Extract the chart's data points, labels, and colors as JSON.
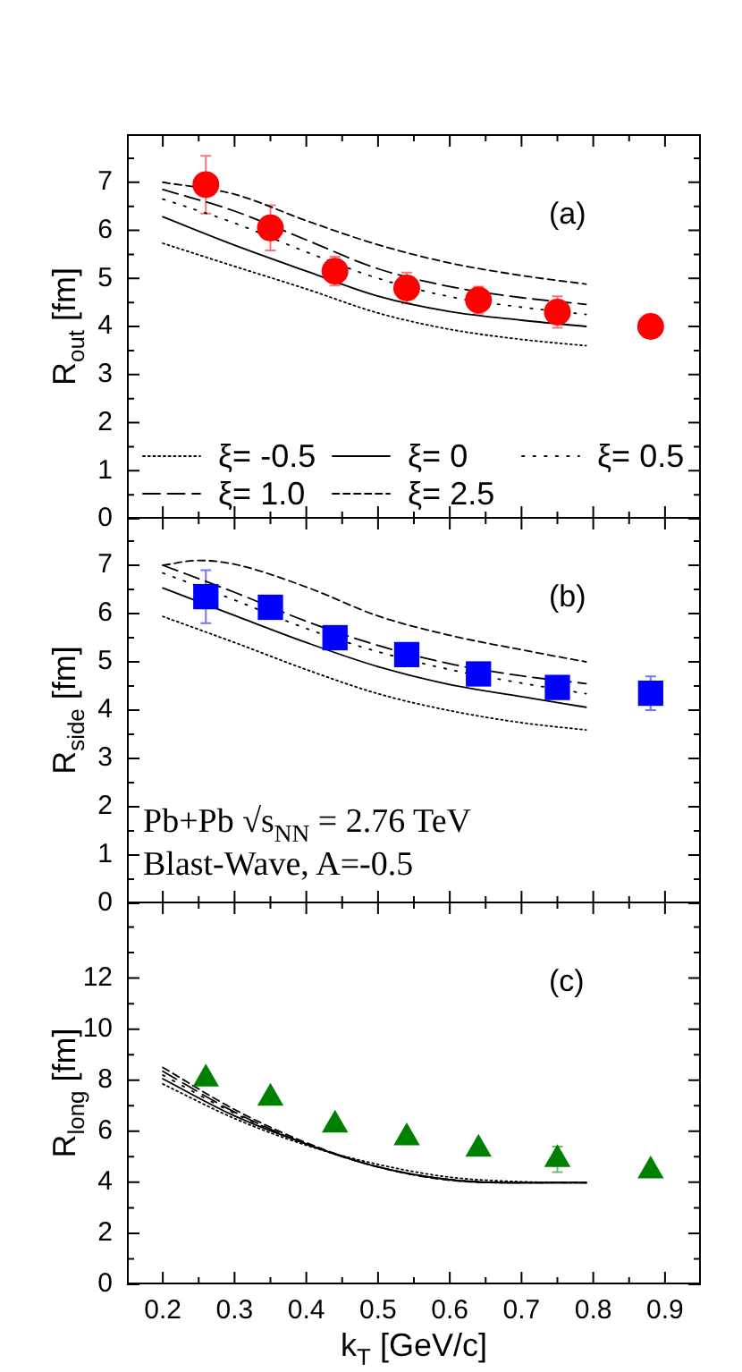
{
  "chart_data": [
    {
      "type": "scatter",
      "ylabel": "R$_{out}$ [fm]",
      "x": [
        0.26,
        0.35,
        0.44,
        0.54,
        0.64,
        0.75,
        0.88
      ],
      "xlim": [
        0.15,
        0.95
      ],
      "xticks": [
        0.2,
        {
          "value": 0.25,
          "label": null
        },
        0.3,
        {
          "value": 0.35,
          "label": null
        },
        0.4,
        {
          "value": 0.45,
          "label": null
        },
        0.5,
        {
          "value": 0.55,
          "label": null
        },
        0.6,
        {
          "value": 0.65,
          "label": null
        },
        0.7,
        {
          "value": 0.75,
          "label": null
        },
        0.8,
        {
          "value": 0.85,
          "label": null
        },
        0.9
      ],
      "ylim": [
        0,
        8
      ],
      "yticks": [
        0,
        {
          "value": 0.5,
          "label": null
        },
        1,
        {
          "value": 1.5,
          "label": null
        },
        2,
        {
          "value": 2.5,
          "label": null
        },
        3,
        {
          "value": 3.5,
          "label": null
        },
        4,
        {
          "value": 4.5,
          "label": null
        },
        5,
        {
          "value": 5.5,
          "label": null
        },
        6,
        {
          "value": 6.5,
          "label": null
        },
        7,
        {
          "value": 7.5,
          "label": null
        }
      ],
      "tick_labels": "y",
      "legend": "bottom",
      "annotations": [
        "(a)"
      ],
      "series": [
        {
          "color": "#ff0000",
          "marker": "circle",
          "values": [
            6.95,
            6.05,
            5.15,
            4.8,
            4.55,
            4.3,
            4.0
          ],
          "errors": [
            0.6,
            0.47,
            0.3,
            0.32,
            0.28,
            0.33,
            null
          ]
        },
        {
          "name": "ξ= -0.5",
          "type": "line",
          "color": "#000000",
          "line_style": "dotted",
          "marker": "none",
          "x": [
            0.2,
            0.3,
            0.4,
            0.5,
            0.6,
            0.7,
            0.79
          ],
          "values": [
            5.73,
            5.25,
            4.78,
            4.28,
            3.94,
            3.73,
            3.6
          ]
        },
        {
          "name": "ξ= 0",
          "type": "line",
          "color": "#000000",
          "line_style": "solid",
          "marker": "none",
          "x": [
            0.2,
            0.3,
            0.4,
            0.5,
            0.6,
            0.7,
            0.79
          ],
          "values": [
            6.28,
            5.69,
            5.15,
            4.63,
            4.31,
            4.13,
            4.0
          ]
        },
        {
          "name": "ξ= 0.5",
          "type": "line",
          "color": "#000000",
          "line_style": "dotted",
          "marker": "none",
          "x": [
            0.2,
            0.3,
            0.4,
            0.5,
            0.6,
            0.7,
            0.79
          ],
          "values": [
            6.65,
            6.15,
            5.55,
            5.0,
            4.62,
            4.4,
            4.25
          ]
        },
        {
          "name": "ξ= 1.0",
          "type": "line",
          "color": "#000000",
          "line_style": "dashed",
          "marker": "none",
          "x": [
            0.2,
            0.3,
            0.4,
            0.5,
            0.6,
            0.7,
            0.79
          ],
          "values": [
            6.85,
            6.4,
            5.8,
            5.2,
            4.83,
            4.6,
            4.46
          ]
        },
        {
          "name": "ξ= 2.5",
          "type": "line",
          "color": "#000000",
          "line_style": "dashed",
          "marker": "none",
          "x": [
            0.2,
            0.3,
            0.4,
            0.5,
            0.6,
            0.7,
            0.79
          ],
          "values": [
            7.0,
            6.75,
            6.2,
            5.7,
            5.32,
            5.06,
            4.88
          ]
        }
      ]
    },
    {
      "type": "scatter",
      "ylabel": "R$_{side}$ [fm]",
      "x": [
        0.26,
        0.35,
        0.44,
        0.54,
        0.64,
        0.75,
        0.88
      ],
      "xlim": [
        0.15,
        0.95
      ],
      "xticks": [
        0.2,
        {
          "value": 0.25,
          "label": null
        },
        0.3,
        {
          "value": 0.35,
          "label": null
        },
        0.4,
        {
          "value": 0.45,
          "label": null
        },
        0.5,
        {
          "value": 0.55,
          "label": null
        },
        0.6,
        {
          "value": 0.65,
          "label": null
        },
        0.7,
        {
          "value": 0.75,
          "label": null
        },
        0.8,
        {
          "value": 0.85,
          "label": null
        },
        0.9
      ],
      "ylim": [
        0,
        8
      ],
      "yticks": [
        0,
        {
          "value": 0.5,
          "label": null
        },
        1,
        {
          "value": 1.5,
          "label": null
        },
        2,
        {
          "value": 2.5,
          "label": null
        },
        3,
        {
          "value": 3.5,
          "label": null
        },
        4,
        {
          "value": 4.5,
          "label": null
        },
        5,
        {
          "value": 5.5,
          "label": null
        },
        6,
        {
          "value": 6.5,
          "label": null
        },
        7,
        {
          "value": 7.5,
          "label": null
        }
      ],
      "tick_labels": "y",
      "annotations": [
        "(b)",
        "Pb+Pb √s$_{NN}$ = 2.76 TeV",
        "Blast-Wave, A=-0.5"
      ],
      "series": [
        {
          "color": "#0000ff",
          "marker": "square",
          "values": [
            6.35,
            6.13,
            5.5,
            5.15,
            4.75,
            4.47,
            4.35
          ],
          "errors": [
            0.55,
            null,
            null,
            null,
            null,
            null,
            0.35
          ]
        },
        {
          "type": "line",
          "color": "#000000",
          "line_style": "dotted",
          "marker": "none",
          "x": [
            0.2,
            0.3,
            0.4,
            0.5,
            0.6,
            0.7,
            0.79
          ],
          "values": [
            5.94,
            5.4,
            4.84,
            4.34,
            3.99,
            3.74,
            3.59
          ]
        },
        {
          "type": "line",
          "color": "#000000",
          "line_style": "solid",
          "marker": "none",
          "x": [
            0.2,
            0.3,
            0.4,
            0.5,
            0.6,
            0.7,
            0.79
          ],
          "values": [
            6.53,
            5.96,
            5.4,
            4.9,
            4.53,
            4.28,
            4.06
          ]
        },
        {
          "type": "line",
          "color": "#000000",
          "line_style": "dotted",
          "marker": "none",
          "x": [
            0.2,
            0.3,
            0.4,
            0.5,
            0.6,
            0.7,
            0.79
          ],
          "values": [
            6.84,
            6.28,
            5.69,
            5.21,
            4.84,
            4.56,
            4.34
          ]
        },
        {
          "type": "line",
          "color": "#000000",
          "line_style": "dashed",
          "marker": "none",
          "x": [
            0.2,
            0.3,
            0.4,
            0.5,
            0.6,
            0.7,
            0.79
          ],
          "values": [
            7.0,
            6.44,
            5.84,
            5.34,
            4.96,
            4.71,
            4.55
          ]
        },
        {
          "type": "line",
          "color": "#000000",
          "line_style": "dashed",
          "marker": "none",
          "x": [
            0.2,
            0.25,
            0.3,
            0.4,
            0.5,
            0.6,
            0.7,
            0.79
          ],
          "values": [
            7.0,
            7.1,
            7.02,
            6.55,
            5.95,
            5.55,
            5.25,
            5.0
          ]
        }
      ]
    },
    {
      "type": "scatter",
      "xlabel": "k$_{T}$ [GeV/c]",
      "ylabel": "R$_{long}$ [fm]",
      "x": [
        0.26,
        0.35,
        0.44,
        0.54,
        0.64,
        0.75,
        0.88
      ],
      "xlim": [
        0.15,
        0.95
      ],
      "xticks": [
        0.2,
        {
          "value": 0.25,
          "label": null
        },
        0.3,
        {
          "value": 0.35,
          "label": null
        },
        0.4,
        {
          "value": 0.45,
          "label": null
        },
        0.5,
        {
          "value": 0.55,
          "label": null
        },
        0.6,
        {
          "value": 0.65,
          "label": null
        },
        0.7,
        {
          "value": 0.75,
          "label": null
        },
        0.8,
        {
          "value": 0.85,
          "label": null
        },
        0.9
      ],
      "ylim": [
        0,
        15
      ],
      "yticks": [
        0,
        {
          "value": 1,
          "label": null
        },
        2,
        {
          "value": 3,
          "label": null
        },
        4,
        {
          "value": 5,
          "label": null
        },
        6,
        {
          "value": 7,
          "label": null
        },
        8,
        {
          "value": 9,
          "label": null
        },
        10,
        {
          "value": 11,
          "label": null
        },
        12,
        {
          "value": 13,
          "label": null
        },
        {
          "value": 14,
          "label": null
        }
      ],
      "annotations": [
        "(c)"
      ],
      "series": [
        {
          "color": "#008000",
          "marker": "triangle",
          "values": [
            8.05,
            7.3,
            6.25,
            5.75,
            5.3,
            4.9,
            4.45
          ],
          "errors": [
            null,
            null,
            null,
            null,
            null,
            0.5,
            null
          ]
        },
        {
          "type": "line",
          "color": "#000000",
          "line_style": "dotted",
          "marker": "none",
          "x": [
            0.2,
            0.3,
            0.4,
            0.5,
            0.6,
            0.7,
            0.79
          ],
          "values": [
            7.85,
            6.5,
            5.45,
            4.7,
            4.2,
            4.02,
            3.98
          ]
        },
        {
          "type": "line",
          "color": "#000000",
          "line_style": "solid",
          "marker": "none",
          "x": [
            0.2,
            0.3,
            0.4,
            0.5,
            0.6,
            0.7,
            0.79
          ],
          "values": [
            8.05,
            6.6,
            5.5,
            4.6,
            4.1,
            3.98,
            3.98
          ]
        },
        {
          "type": "line",
          "color": "#000000",
          "line_style": "dotted",
          "marker": "none",
          "x": [
            0.2,
            0.3,
            0.4,
            0.5,
            0.6,
            0.7,
            0.79
          ],
          "values": [
            8.2,
            6.7,
            5.5,
            4.6,
            4.1,
            3.98,
            3.98
          ]
        },
        {
          "type": "line",
          "color": "#000000",
          "line_style": "dashed",
          "marker": "none",
          "x": [
            0.2,
            0.3,
            0.4,
            0.5,
            0.6,
            0.7,
            0.79
          ],
          "values": [
            8.35,
            6.75,
            5.5,
            4.6,
            4.1,
            3.98,
            3.98
          ]
        },
        {
          "type": "line",
          "color": "#000000",
          "line_style": "dashed",
          "marker": "none",
          "x": [
            0.2,
            0.3,
            0.4,
            0.5,
            0.6,
            0.7,
            0.79
          ],
          "values": [
            8.5,
            6.85,
            5.55,
            4.6,
            4.08,
            3.98,
            4.0
          ]
        }
      ]
    }
  ]
}
